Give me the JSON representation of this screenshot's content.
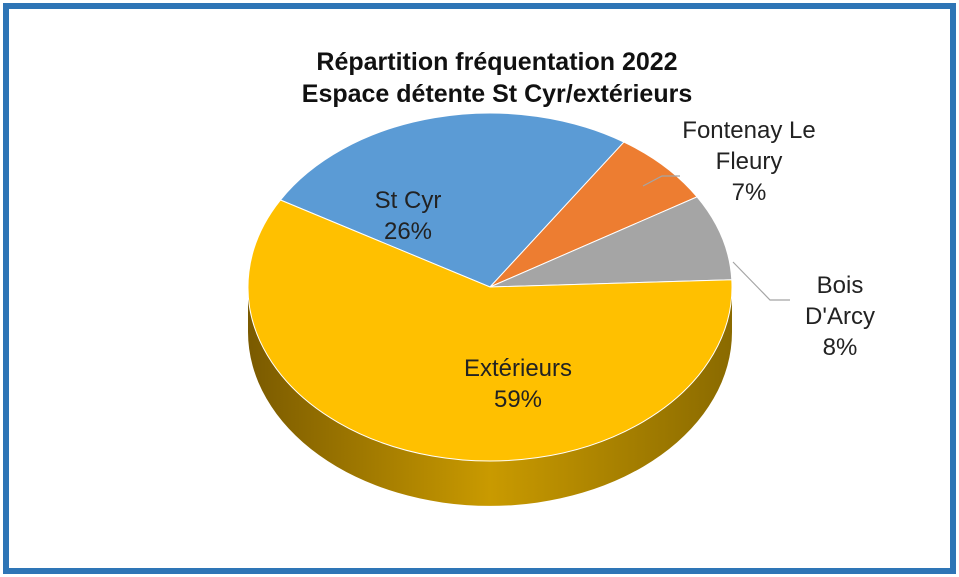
{
  "chart_data": {
    "type": "pie",
    "title": [
      "Répartition fréquentation 2022",
      "Espace détente St Cyr/extérieurs"
    ],
    "categories": [
      "St Cyr",
      "Fontenay Le Fleury",
      "Bois D'Arcy",
      "Extérieurs"
    ],
    "values": [
      26,
      7,
      8,
      59
    ],
    "value_labels": [
      "26%",
      "7%",
      "8%",
      "59%"
    ],
    "colors": [
      "#5b9bd5",
      "#ed7d31",
      "#a5a5a5",
      "#ffc000"
    ]
  }
}
